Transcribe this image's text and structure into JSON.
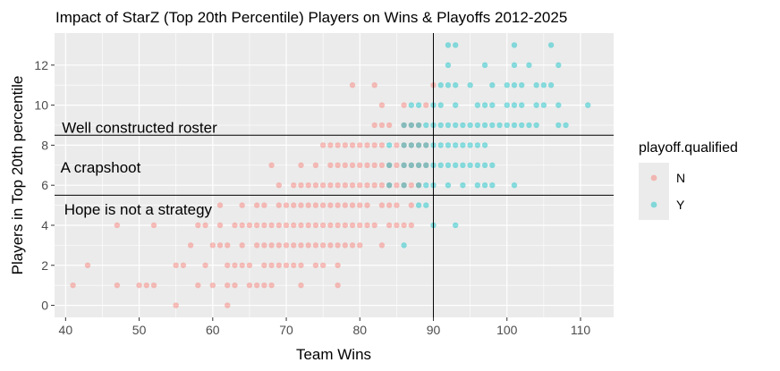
{
  "chart_data": {
    "type": "scatter",
    "title": "Impact of StarZ (Top 20th Percentile) Players on Wins & Playoffs 2012-2025",
    "xlabel": "Team Wins",
    "ylabel": "Players in Top 20th percentile",
    "xlim": [
      38.5,
      114.5
    ],
    "ylim": [
      -0.6,
      13.6
    ],
    "xticks": [
      40,
      50,
      60,
      70,
      80,
      90,
      100,
      110
    ],
    "yticks": [
      0,
      2,
      4,
      6,
      8,
      10,
      12
    ],
    "grid": true,
    "reference_lines": {
      "vertical_x": 90,
      "horizontal_y": [
        8.5,
        5.5
      ]
    },
    "annotations": [
      {
        "text": "Well constructed roster",
        "x": 39.5,
        "y": 8.9
      },
      {
        "text": "A crapshoot",
        "x": 39.3,
        "y": 6.9
      },
      {
        "text": "Hope is not a strategy",
        "x": 39.8,
        "y": 4.8
      }
    ],
    "legend": {
      "title": "playoff.qualified",
      "position": "right",
      "entries": [
        {
          "label": "N",
          "color": "#F8766D"
        },
        {
          "label": "Y",
          "color": "#00BFC4"
        }
      ]
    },
    "series": [
      {
        "name": "N",
        "color": "#F8766D",
        "points": [
          [
            41,
            1
          ],
          [
            47,
            1
          ],
          [
            50,
            1
          ],
          [
            51,
            1
          ],
          [
            52,
            1
          ],
          [
            58,
            1
          ],
          [
            60,
            1
          ],
          [
            62,
            1
          ],
          [
            63,
            1
          ],
          [
            65,
            1
          ],
          [
            66,
            1
          ],
          [
            67,
            1
          ],
          [
            68,
            1
          ],
          [
            72,
            1
          ],
          [
            77,
            1
          ],
          [
            43,
            2
          ],
          [
            55,
            2
          ],
          [
            56,
            2
          ],
          [
            59,
            2
          ],
          [
            62,
            2
          ],
          [
            63,
            2
          ],
          [
            64,
            2
          ],
          [
            65,
            2
          ],
          [
            67,
            2
          ],
          [
            68,
            2
          ],
          [
            69,
            2
          ],
          [
            70,
            2
          ],
          [
            71,
            2
          ],
          [
            72,
            2
          ],
          [
            74,
            2
          ],
          [
            75,
            2
          ],
          [
            77,
            2
          ],
          [
            55,
            0
          ],
          [
            62,
            0
          ],
          [
            57,
            3
          ],
          [
            60,
            3
          ],
          [
            61,
            3
          ],
          [
            62,
            3
          ],
          [
            64,
            3
          ],
          [
            66,
            3
          ],
          [
            67,
            3
          ],
          [
            68,
            3
          ],
          [
            69,
            3
          ],
          [
            70,
            3
          ],
          [
            71,
            3
          ],
          [
            72,
            3
          ],
          [
            73,
            3
          ],
          [
            74,
            3
          ],
          [
            75,
            3
          ],
          [
            76,
            3
          ],
          [
            77,
            3
          ],
          [
            78,
            3
          ],
          [
            79,
            3
          ],
          [
            80,
            3
          ],
          [
            83,
            3
          ],
          [
            47,
            4
          ],
          [
            52,
            4
          ],
          [
            58,
            4
          ],
          [
            59,
            4
          ],
          [
            61,
            4
          ],
          [
            63,
            4
          ],
          [
            64,
            4
          ],
          [
            65,
            4
          ],
          [
            66,
            4
          ],
          [
            67,
            4
          ],
          [
            68,
            4
          ],
          [
            69,
            4
          ],
          [
            70,
            4
          ],
          [
            71,
            4
          ],
          [
            72,
            4
          ],
          [
            73,
            4
          ],
          [
            74,
            4
          ],
          [
            75,
            4
          ],
          [
            76,
            4
          ],
          [
            77,
            4
          ],
          [
            78,
            4
          ],
          [
            79,
            4
          ],
          [
            80,
            4
          ],
          [
            81,
            4
          ],
          [
            82,
            4
          ],
          [
            84,
            4
          ],
          [
            85,
            4
          ],
          [
            86,
            4
          ],
          [
            87,
            4
          ],
          [
            61,
            5
          ],
          [
            64,
            5
          ],
          [
            66,
            5
          ],
          [
            67,
            5
          ],
          [
            69,
            5
          ],
          [
            70,
            5
          ],
          [
            71,
            5
          ],
          [
            72,
            5
          ],
          [
            73,
            5
          ],
          [
            74,
            5
          ],
          [
            75,
            5
          ],
          [
            76,
            5
          ],
          [
            77,
            5
          ],
          [
            78,
            5
          ],
          [
            79,
            5
          ],
          [
            80,
            5
          ],
          [
            81,
            5
          ],
          [
            83,
            5
          ],
          [
            84,
            5
          ],
          [
            85,
            5
          ],
          [
            87,
            5
          ],
          [
            69,
            6
          ],
          [
            71,
            6
          ],
          [
            72,
            6
          ],
          [
            73,
            6
          ],
          [
            74,
            6
          ],
          [
            75,
            6
          ],
          [
            76,
            6
          ],
          [
            77,
            6
          ],
          [
            78,
            6
          ],
          [
            79,
            6
          ],
          [
            80,
            6
          ],
          [
            81,
            6
          ],
          [
            82,
            6
          ],
          [
            83,
            6
          ],
          [
            84,
            6
          ],
          [
            85,
            6
          ],
          [
            86,
            6
          ],
          [
            87,
            6
          ],
          [
            88,
            6
          ],
          [
            68,
            7
          ],
          [
            72,
            7
          ],
          [
            74,
            7
          ],
          [
            76,
            7
          ],
          [
            77,
            7
          ],
          [
            78,
            7
          ],
          [
            79,
            7
          ],
          [
            80,
            7
          ],
          [
            81,
            7
          ],
          [
            82,
            7
          ],
          [
            83,
            7
          ],
          [
            84,
            7
          ],
          [
            85,
            7
          ],
          [
            86,
            7
          ],
          [
            87,
            7
          ],
          [
            88,
            7
          ],
          [
            89,
            7
          ],
          [
            75,
            8
          ],
          [
            76,
            8
          ],
          [
            77,
            8
          ],
          [
            78,
            8
          ],
          [
            79,
            8
          ],
          [
            80,
            8
          ],
          [
            81,
            8
          ],
          [
            82,
            8
          ],
          [
            83,
            8
          ],
          [
            85,
            8
          ],
          [
            86,
            8
          ],
          [
            87,
            8
          ],
          [
            88,
            8
          ],
          [
            89,
            8
          ],
          [
            82,
            9
          ],
          [
            83,
            9
          ],
          [
            84,
            9
          ],
          [
            86,
            9
          ],
          [
            87,
            9
          ],
          [
            88,
            9
          ],
          [
            83,
            10
          ],
          [
            86,
            10
          ],
          [
            89,
            10
          ],
          [
            79,
            11
          ],
          [
            82,
            11
          ],
          [
            90,
            11
          ]
        ]
      },
      {
        "name": "Y",
        "color": "#00BFC4",
        "points": [
          [
            86,
            3
          ],
          [
            90,
            4
          ],
          [
            93,
            4
          ],
          [
            88,
            5
          ],
          [
            89,
            5
          ],
          [
            84,
            6
          ],
          [
            86,
            6
          ],
          [
            88,
            6
          ],
          [
            89,
            6
          ],
          [
            90,
            6
          ],
          [
            92,
            6
          ],
          [
            94,
            6
          ],
          [
            96,
            6
          ],
          [
            97,
            6
          ],
          [
            98,
            6
          ],
          [
            101,
            6
          ],
          [
            84,
            7
          ],
          [
            86,
            7
          ],
          [
            87,
            7
          ],
          [
            88,
            7
          ],
          [
            89,
            7
          ],
          [
            90,
            7
          ],
          [
            91,
            7
          ],
          [
            92,
            7
          ],
          [
            93,
            7
          ],
          [
            94,
            7
          ],
          [
            95,
            7
          ],
          [
            96,
            7
          ],
          [
            97,
            7
          ],
          [
            98,
            7
          ],
          [
            84,
            8
          ],
          [
            86,
            8
          ],
          [
            87,
            8
          ],
          [
            88,
            8
          ],
          [
            89,
            8
          ],
          [
            90,
            8
          ],
          [
            91,
            8
          ],
          [
            92,
            8
          ],
          [
            93,
            8
          ],
          [
            94,
            8
          ],
          [
            95,
            8
          ],
          [
            96,
            8
          ],
          [
            97,
            8
          ],
          [
            86,
            9
          ],
          [
            87,
            9
          ],
          [
            88,
            9
          ],
          [
            89,
            9
          ],
          [
            90,
            9
          ],
          [
            91,
            9
          ],
          [
            92,
            9
          ],
          [
            93,
            9
          ],
          [
            94,
            9
          ],
          [
            95,
            9
          ],
          [
            96,
            9
          ],
          [
            97,
            9
          ],
          [
            98,
            9
          ],
          [
            99,
            9
          ],
          [
            100,
            9
          ],
          [
            101,
            9
          ],
          [
            102,
            9
          ],
          [
            103,
            9
          ],
          [
            104,
            9
          ],
          [
            107,
            9
          ],
          [
            108,
            9
          ],
          [
            87,
            10
          ],
          [
            88,
            10
          ],
          [
            90,
            10
          ],
          [
            91,
            10
          ],
          [
            93,
            10
          ],
          [
            96,
            10
          ],
          [
            97,
            10
          ],
          [
            98,
            10
          ],
          [
            100,
            10
          ],
          [
            101,
            10
          ],
          [
            102,
            10
          ],
          [
            104,
            10
          ],
          [
            105,
            10
          ],
          [
            107,
            10
          ],
          [
            111,
            10
          ],
          [
            91,
            11
          ],
          [
            92,
            11
          ],
          [
            93,
            11
          ],
          [
            95,
            11
          ],
          [
            98,
            11
          ],
          [
            100,
            11
          ],
          [
            101,
            11
          ],
          [
            102,
            11
          ],
          [
            104,
            11
          ],
          [
            105,
            11
          ],
          [
            106,
            11
          ],
          [
            92,
            12
          ],
          [
            97,
            12
          ],
          [
            101,
            12
          ],
          [
            103,
            12
          ],
          [
            107,
            12
          ],
          [
            92,
            13
          ],
          [
            93,
            13
          ],
          [
            101,
            13
          ],
          [
            106,
            13
          ]
        ]
      }
    ]
  }
}
